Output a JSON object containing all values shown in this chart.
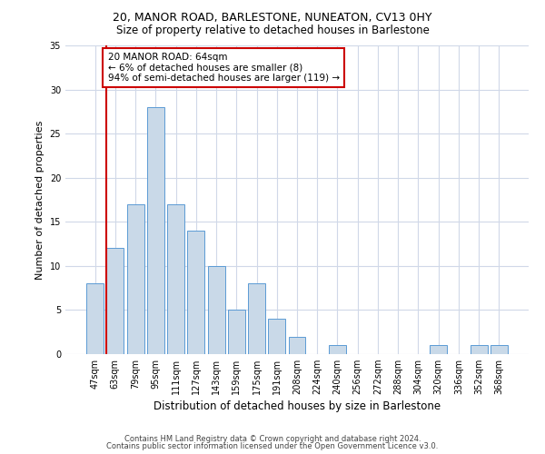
{
  "title1": "20, MANOR ROAD, BARLESTONE, NUNEATON, CV13 0HY",
  "title2": "Size of property relative to detached houses in Barlestone",
  "xlabel": "Distribution of detached houses by size in Barlestone",
  "ylabel": "Number of detached properties",
  "bar_labels": [
    "47sqm",
    "63sqm",
    "79sqm",
    "95sqm",
    "111sqm",
    "127sqm",
    "143sqm",
    "159sqm",
    "175sqm",
    "191sqm",
    "208sqm",
    "224sqm",
    "240sqm",
    "256sqm",
    "272sqm",
    "288sqm",
    "304sqm",
    "320sqm",
    "336sqm",
    "352sqm",
    "368sqm"
  ],
  "bar_values": [
    8,
    12,
    17,
    28,
    17,
    14,
    10,
    5,
    8,
    4,
    2,
    0,
    1,
    0,
    0,
    0,
    0,
    1,
    0,
    1,
    1
  ],
  "bar_color": "#c9d9e8",
  "bar_edge_color": "#5b9bd5",
  "vline_color": "#cc0000",
  "annotation_text": "20 MANOR ROAD: 64sqm\n← 6% of detached houses are smaller (8)\n94% of semi-detached houses are larger (119) →",
  "annotation_box_color": "#ffffff",
  "annotation_box_edge": "#cc0000",
  "ylim": [
    0,
    35
  ],
  "yticks": [
    0,
    5,
    10,
    15,
    20,
    25,
    30,
    35
  ],
  "footer1": "Contains HM Land Registry data © Crown copyright and database right 2024.",
  "footer2": "Contains public sector information licensed under the Open Government Licence v3.0.",
  "bg_color": "#ffffff",
  "grid_color": "#d0d8e8",
  "title1_fontsize": 9,
  "title2_fontsize": 8.5,
  "xlabel_fontsize": 8.5,
  "ylabel_fontsize": 8,
  "tick_fontsize": 7,
  "footer_fontsize": 6,
  "annotation_fontsize": 7.5
}
